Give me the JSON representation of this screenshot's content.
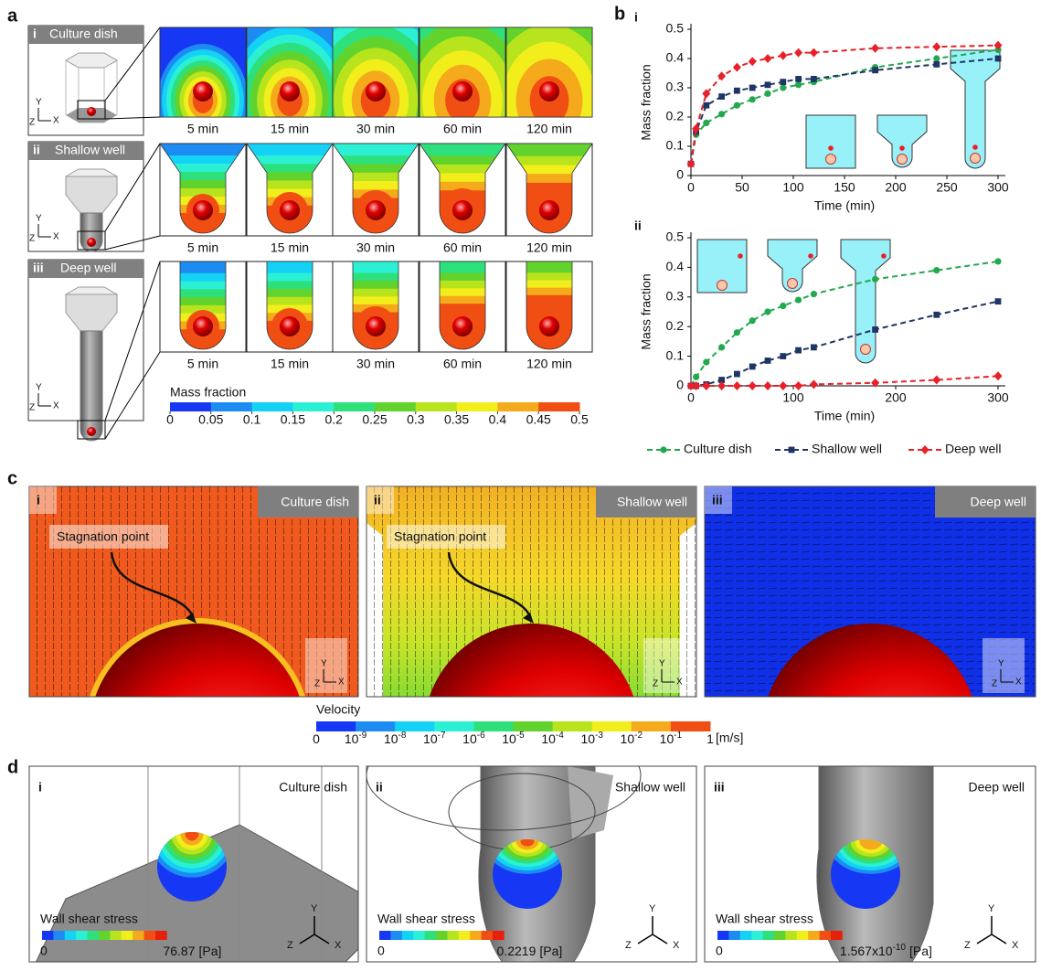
{
  "panel_labels": [
    "a",
    "b",
    "c",
    "d"
  ],
  "axis_letters": {
    "y": "Y",
    "z": "Z",
    "x": "X"
  },
  "panel_a": {
    "rows": [
      {
        "roman": "i",
        "title": "Culture dish"
      },
      {
        "roman": "ii",
        "title": "Shallow well"
      },
      {
        "roman": "iii",
        "title": "Deep well"
      }
    ],
    "times": [
      "5 min",
      "15 min",
      "30 min",
      "60 min",
      "120 min"
    ],
    "colorbar": {
      "title": "Mass fraction",
      "ticks": [
        0,
        0.05,
        0.1,
        0.15,
        0.2,
        0.25,
        0.3,
        0.35,
        0.4,
        0.45,
        0.5
      ],
      "colors": [
        "#1638f5",
        "#1c8cf2",
        "#14d2f5",
        "#2cf0d4",
        "#2ee07c",
        "#62d22c",
        "#b8e41e",
        "#f2ee1c",
        "#f5aa1c",
        "#f04e12"
      ]
    }
  },
  "chart_data": [
    {
      "type": "line",
      "roman": "i",
      "ylabel": "Mass fraction",
      "xlabel": "Time (min)",
      "x": [
        0,
        5,
        15,
        30,
        45,
        60,
        75,
        90,
        105,
        120,
        180,
        240,
        300
      ],
      "xlim": [
        0,
        300
      ],
      "xticks": [
        0,
        50,
        100,
        150,
        200,
        250,
        300
      ],
      "ylim": [
        0,
        0.5
      ],
      "yticks": [
        0,
        0.1,
        0.2,
        0.3,
        0.4,
        0.5
      ],
      "series": [
        {
          "name": "Culture dish",
          "color": "#22a84e",
          "marker": "circle",
          "values": [
            0.04,
            0.14,
            0.18,
            0.21,
            0.24,
            0.26,
            0.28,
            0.3,
            0.31,
            0.32,
            0.37,
            0.4,
            0.43
          ]
        },
        {
          "name": "Shallow well",
          "color": "#1f3563",
          "marker": "square",
          "values": [
            0.04,
            0.15,
            0.24,
            0.27,
            0.29,
            0.3,
            0.31,
            0.32,
            0.33,
            0.33,
            0.36,
            0.38,
            0.4
          ]
        },
        {
          "name": "Deep well",
          "color": "#e8202a",
          "marker": "diamond",
          "values": [
            0.04,
            0.16,
            0.28,
            0.34,
            0.37,
            0.39,
            0.4,
            0.41,
            0.42,
            0.42,
            0.435,
            0.44,
            0.445
          ]
        }
      ]
    },
    {
      "type": "line",
      "roman": "ii",
      "ylabel": "Mass fraction",
      "xlabel": "Time (min)",
      "x": [
        0,
        5,
        15,
        30,
        45,
        60,
        75,
        90,
        105,
        120,
        180,
        240,
        300
      ],
      "xlim": [
        0,
        300
      ],
      "xticks": [
        0,
        100,
        200,
        300
      ],
      "ylim": [
        0,
        0.5
      ],
      "yticks": [
        0,
        0.1,
        0.2,
        0.3,
        0.4,
        0.5
      ],
      "series": [
        {
          "name": "Culture dish",
          "color": "#22a84e",
          "marker": "circle",
          "values": [
            0,
            0.03,
            0.08,
            0.13,
            0.18,
            0.22,
            0.25,
            0.27,
            0.29,
            0.31,
            0.36,
            0.39,
            0.42
          ]
        },
        {
          "name": "Shallow well",
          "color": "#1f3563",
          "marker": "square",
          "values": [
            0,
            0,
            0.005,
            0.02,
            0.04,
            0.065,
            0.085,
            0.1,
            0.12,
            0.13,
            0.19,
            0.24,
            0.285
          ]
        },
        {
          "name": "Deep well",
          "color": "#e8202a",
          "marker": "diamond",
          "values": [
            0,
            0,
            0,
            0,
            0,
            0,
            0,
            0,
            0,
            0.005,
            0.01,
            0.02,
            0.033
          ]
        }
      ]
    }
  ],
  "panel_c": {
    "panels": [
      {
        "roman": "i",
        "title": "Culture dish"
      },
      {
        "roman": "ii",
        "title": "Shallow well"
      },
      {
        "roman": "iii",
        "title": "Deep well"
      }
    ],
    "annotation": "Stagnation point",
    "colorbar": {
      "title": "Velocity",
      "unit": "[m/s]",
      "ticks": [
        {
          "base": "0"
        },
        {
          "base": "10",
          "exp": "-9"
        },
        {
          "base": "10",
          "exp": "-8"
        },
        {
          "base": "10",
          "exp": "-7"
        },
        {
          "base": "10",
          "exp": "-6"
        },
        {
          "base": "10",
          "exp": "-5"
        },
        {
          "base": "10",
          "exp": "-4"
        },
        {
          "base": "10",
          "exp": "-3"
        },
        {
          "base": "10",
          "exp": "-2"
        },
        {
          "base": "10",
          "exp": "-1"
        },
        {
          "base": "1"
        }
      ],
      "colors": [
        "#1638f5",
        "#1c8cf2",
        "#14d2f5",
        "#2cf0d4",
        "#2ee07c",
        "#62d22c",
        "#b8e41e",
        "#f2ee1c",
        "#f5aa1c",
        "#f04e12"
      ]
    }
  },
  "panel_d": {
    "cbar_title": "Wall shear stress",
    "min": "0",
    "unit": "[Pa]",
    "panels": [
      {
        "roman": "i",
        "title": "Culture dish",
        "max": "76.87"
      },
      {
        "roman": "ii",
        "title": "Shallow well",
        "max": "0.2219"
      },
      {
        "roman": "iii",
        "title": "Deep well",
        "max": "1.567x10",
        "max_exp": "-10"
      }
    ]
  }
}
